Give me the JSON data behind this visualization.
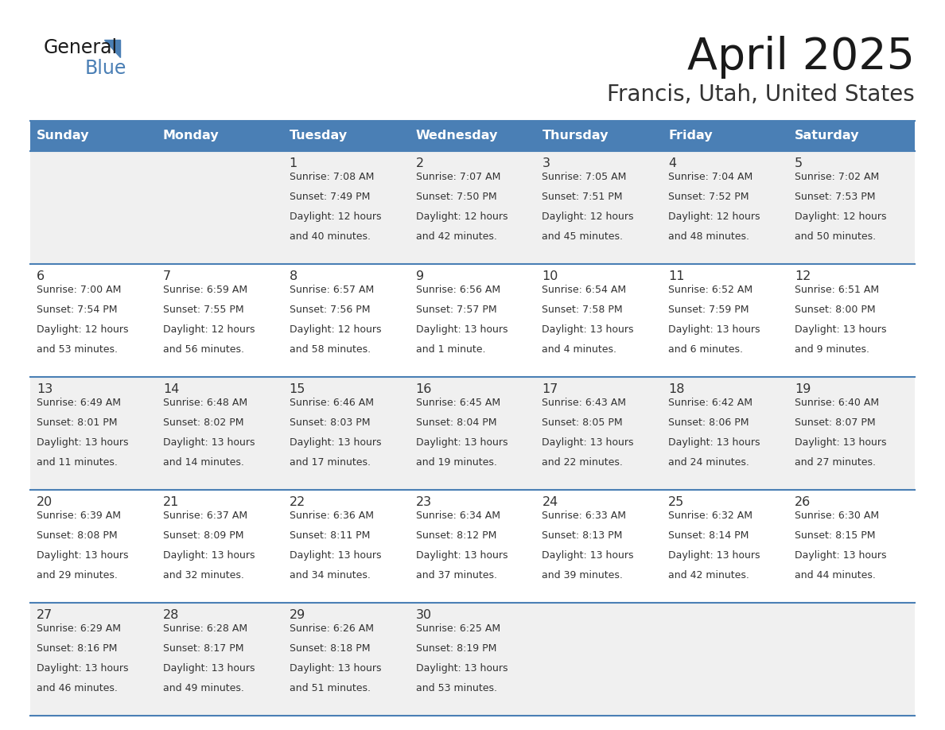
{
  "title": "April 2025",
  "subtitle": "Francis, Utah, United States",
  "header_color": "#4a7fb5",
  "header_text_color": "#ffffff",
  "days_of_week": [
    "Sunday",
    "Monday",
    "Tuesday",
    "Wednesday",
    "Thursday",
    "Friday",
    "Saturday"
  ],
  "bg_color": "#ffffff",
  "cell_bg_even": "#f0f0f0",
  "cell_bg_odd": "#ffffff",
  "separator_color": "#4a7fb5",
  "text_color": "#333333",
  "title_color": "#1a1a1a",
  "subtitle_color": "#333333",
  "calendar": [
    [
      {
        "day": "",
        "sunrise": "",
        "sunset": "",
        "daylight": ""
      },
      {
        "day": "",
        "sunrise": "",
        "sunset": "",
        "daylight": ""
      },
      {
        "day": "1",
        "sunrise": "Sunrise: 7:08 AM",
        "sunset": "Sunset: 7:49 PM",
        "daylight": "Daylight: 12 hours\nand 40 minutes."
      },
      {
        "day": "2",
        "sunrise": "Sunrise: 7:07 AM",
        "sunset": "Sunset: 7:50 PM",
        "daylight": "Daylight: 12 hours\nand 42 minutes."
      },
      {
        "day": "3",
        "sunrise": "Sunrise: 7:05 AM",
        "sunset": "Sunset: 7:51 PM",
        "daylight": "Daylight: 12 hours\nand 45 minutes."
      },
      {
        "day": "4",
        "sunrise": "Sunrise: 7:04 AM",
        "sunset": "Sunset: 7:52 PM",
        "daylight": "Daylight: 12 hours\nand 48 minutes."
      },
      {
        "day": "5",
        "sunrise": "Sunrise: 7:02 AM",
        "sunset": "Sunset: 7:53 PM",
        "daylight": "Daylight: 12 hours\nand 50 minutes."
      }
    ],
    [
      {
        "day": "6",
        "sunrise": "Sunrise: 7:00 AM",
        "sunset": "Sunset: 7:54 PM",
        "daylight": "Daylight: 12 hours\nand 53 minutes."
      },
      {
        "day": "7",
        "sunrise": "Sunrise: 6:59 AM",
        "sunset": "Sunset: 7:55 PM",
        "daylight": "Daylight: 12 hours\nand 56 minutes."
      },
      {
        "day": "8",
        "sunrise": "Sunrise: 6:57 AM",
        "sunset": "Sunset: 7:56 PM",
        "daylight": "Daylight: 12 hours\nand 58 minutes."
      },
      {
        "day": "9",
        "sunrise": "Sunrise: 6:56 AM",
        "sunset": "Sunset: 7:57 PM",
        "daylight": "Daylight: 13 hours\nand 1 minute."
      },
      {
        "day": "10",
        "sunrise": "Sunrise: 6:54 AM",
        "sunset": "Sunset: 7:58 PM",
        "daylight": "Daylight: 13 hours\nand 4 minutes."
      },
      {
        "day": "11",
        "sunrise": "Sunrise: 6:52 AM",
        "sunset": "Sunset: 7:59 PM",
        "daylight": "Daylight: 13 hours\nand 6 minutes."
      },
      {
        "day": "12",
        "sunrise": "Sunrise: 6:51 AM",
        "sunset": "Sunset: 8:00 PM",
        "daylight": "Daylight: 13 hours\nand 9 minutes."
      }
    ],
    [
      {
        "day": "13",
        "sunrise": "Sunrise: 6:49 AM",
        "sunset": "Sunset: 8:01 PM",
        "daylight": "Daylight: 13 hours\nand 11 minutes."
      },
      {
        "day": "14",
        "sunrise": "Sunrise: 6:48 AM",
        "sunset": "Sunset: 8:02 PM",
        "daylight": "Daylight: 13 hours\nand 14 minutes."
      },
      {
        "day": "15",
        "sunrise": "Sunrise: 6:46 AM",
        "sunset": "Sunset: 8:03 PM",
        "daylight": "Daylight: 13 hours\nand 17 minutes."
      },
      {
        "day": "16",
        "sunrise": "Sunrise: 6:45 AM",
        "sunset": "Sunset: 8:04 PM",
        "daylight": "Daylight: 13 hours\nand 19 minutes."
      },
      {
        "day": "17",
        "sunrise": "Sunrise: 6:43 AM",
        "sunset": "Sunset: 8:05 PM",
        "daylight": "Daylight: 13 hours\nand 22 minutes."
      },
      {
        "day": "18",
        "sunrise": "Sunrise: 6:42 AM",
        "sunset": "Sunset: 8:06 PM",
        "daylight": "Daylight: 13 hours\nand 24 minutes."
      },
      {
        "day": "19",
        "sunrise": "Sunrise: 6:40 AM",
        "sunset": "Sunset: 8:07 PM",
        "daylight": "Daylight: 13 hours\nand 27 minutes."
      }
    ],
    [
      {
        "day": "20",
        "sunrise": "Sunrise: 6:39 AM",
        "sunset": "Sunset: 8:08 PM",
        "daylight": "Daylight: 13 hours\nand 29 minutes."
      },
      {
        "day": "21",
        "sunrise": "Sunrise: 6:37 AM",
        "sunset": "Sunset: 8:09 PM",
        "daylight": "Daylight: 13 hours\nand 32 minutes."
      },
      {
        "day": "22",
        "sunrise": "Sunrise: 6:36 AM",
        "sunset": "Sunset: 8:11 PM",
        "daylight": "Daylight: 13 hours\nand 34 minutes."
      },
      {
        "day": "23",
        "sunrise": "Sunrise: 6:34 AM",
        "sunset": "Sunset: 8:12 PM",
        "daylight": "Daylight: 13 hours\nand 37 minutes."
      },
      {
        "day": "24",
        "sunrise": "Sunrise: 6:33 AM",
        "sunset": "Sunset: 8:13 PM",
        "daylight": "Daylight: 13 hours\nand 39 minutes."
      },
      {
        "day": "25",
        "sunrise": "Sunrise: 6:32 AM",
        "sunset": "Sunset: 8:14 PM",
        "daylight": "Daylight: 13 hours\nand 42 minutes."
      },
      {
        "day": "26",
        "sunrise": "Sunrise: 6:30 AM",
        "sunset": "Sunset: 8:15 PM",
        "daylight": "Daylight: 13 hours\nand 44 minutes."
      }
    ],
    [
      {
        "day": "27",
        "sunrise": "Sunrise: 6:29 AM",
        "sunset": "Sunset: 8:16 PM",
        "daylight": "Daylight: 13 hours\nand 46 minutes."
      },
      {
        "day": "28",
        "sunrise": "Sunrise: 6:28 AM",
        "sunset": "Sunset: 8:17 PM",
        "daylight": "Daylight: 13 hours\nand 49 minutes."
      },
      {
        "day": "29",
        "sunrise": "Sunrise: 6:26 AM",
        "sunset": "Sunset: 8:18 PM",
        "daylight": "Daylight: 13 hours\nand 51 minutes."
      },
      {
        "day": "30",
        "sunrise": "Sunrise: 6:25 AM",
        "sunset": "Sunset: 8:19 PM",
        "daylight": "Daylight: 13 hours\nand 53 minutes."
      },
      {
        "day": "",
        "sunrise": "",
        "sunset": "",
        "daylight": ""
      },
      {
        "day": "",
        "sunrise": "",
        "sunset": "",
        "daylight": ""
      },
      {
        "day": "",
        "sunrise": "",
        "sunset": "",
        "daylight": ""
      }
    ]
  ]
}
